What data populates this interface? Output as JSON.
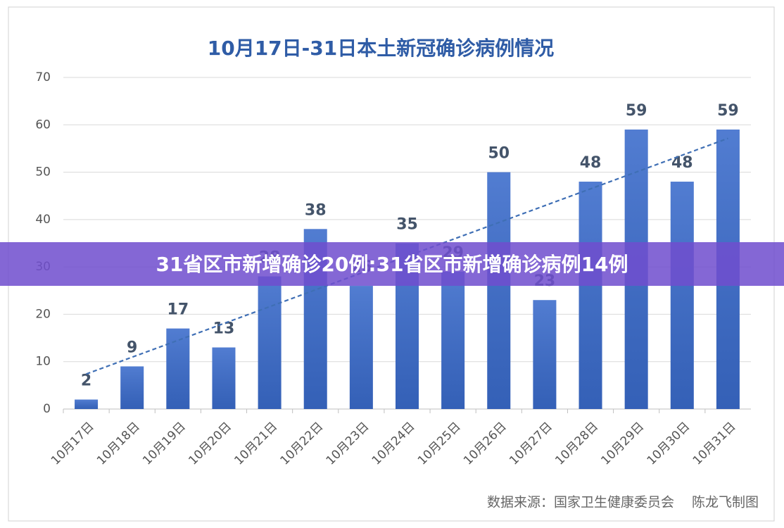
{
  "chart_data": {
    "type": "bar",
    "title": "10月17日-31日本土新冠确诊病例情况",
    "categories": [
      "10月17日",
      "10月18日",
      "10月19日",
      "10月20日",
      "10月21日",
      "10月22日",
      "10月23日",
      "10月24日",
      "10月25日",
      "10月26日",
      "10月27日",
      "10月28日",
      "10月29日",
      "10月30日",
      "10月31日"
    ],
    "values": [
      2,
      9,
      17,
      13,
      28,
      38,
      26,
      35,
      29,
      50,
      23,
      48,
      59,
      48,
      59
    ],
    "color": "#3a6bcb",
    "ylim": [
      0,
      70
    ],
    "yticks": [
      0,
      10,
      20,
      30,
      40,
      50,
      60,
      70
    ],
    "grid": true,
    "trendline": true,
    "source": "数据来源：国家卫生健康委员会　 陈龙飞制图"
  },
  "banner": "31省区市新增确诊20例:31省区市新增确诊病例14例"
}
